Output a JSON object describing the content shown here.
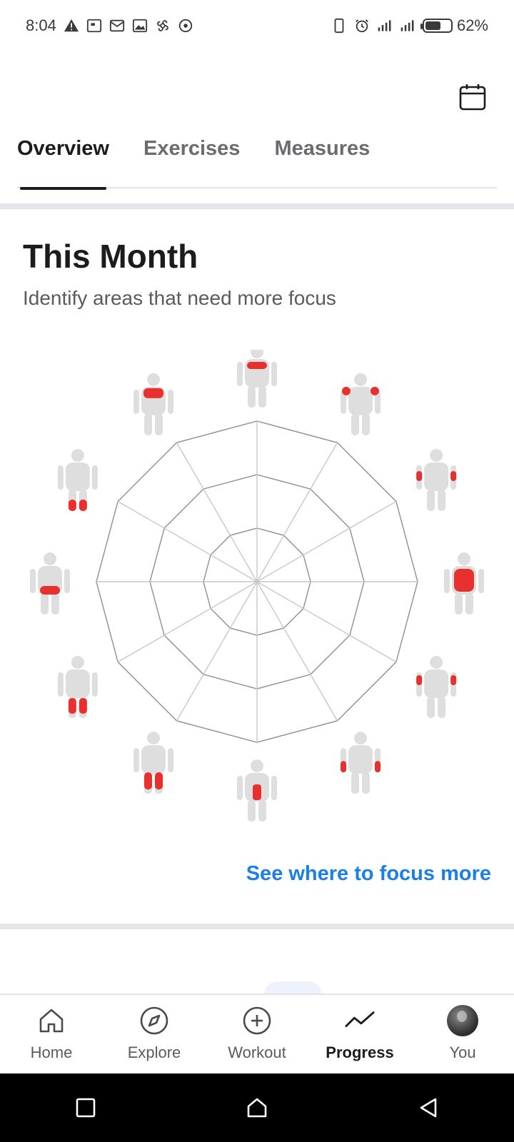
{
  "status_bar": {
    "time": "8:04",
    "battery": "62%",
    "battery_level": 0.62
  },
  "tabs": [
    {
      "label": "Overview",
      "active": true
    },
    {
      "label": "Exercises",
      "active": false
    },
    {
      "label": "Measures",
      "active": false
    }
  ],
  "section": {
    "title": "This Month",
    "subtitle": "Identify areas that need more focus",
    "link": "See where to focus more"
  },
  "radar": {
    "axes": [
      "chest",
      "shoulders",
      "triceps",
      "back",
      "biceps",
      "forearms",
      "abs",
      "quads",
      "hamstrings",
      "glutes",
      "calves",
      "upper-back"
    ],
    "values": [
      0,
      0,
      0,
      0,
      0,
      0,
      0,
      0,
      0,
      0,
      0,
      0
    ],
    "rings": 3,
    "highlight_color": "#e8312f"
  },
  "bottom_nav": [
    {
      "label": "Home",
      "icon": "home-icon",
      "active": false
    },
    {
      "label": "Explore",
      "icon": "compass-icon",
      "active": false
    },
    {
      "label": "Workout",
      "icon": "plus-circle-icon",
      "active": false
    },
    {
      "label": "Progress",
      "icon": "trend-icon",
      "active": true
    },
    {
      "label": "You",
      "icon": "avatar",
      "active": false
    }
  ],
  "colors": {
    "accent": "#1a7fe6",
    "text": "#1c1c1e",
    "muscle_highlight": "#e8312f"
  }
}
